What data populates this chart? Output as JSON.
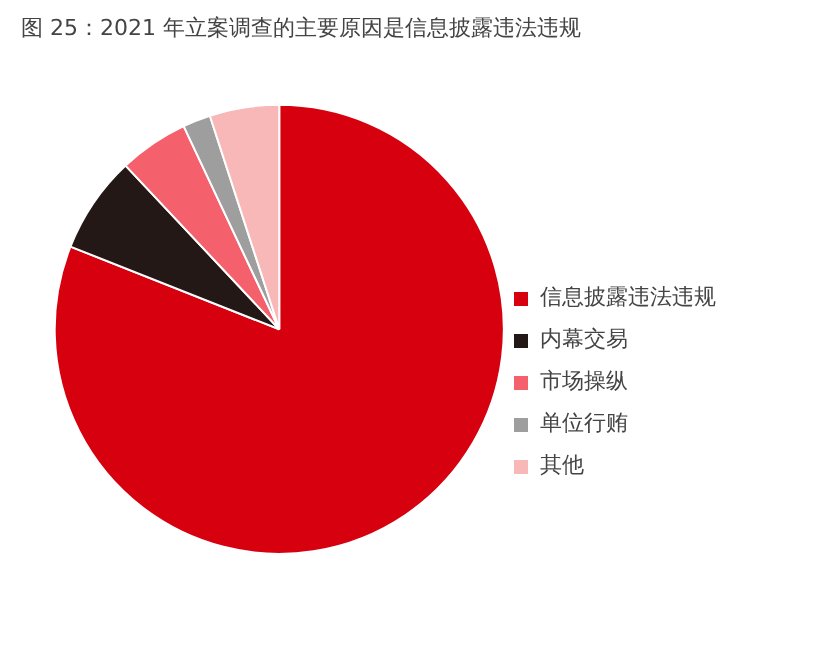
{
  "chart_data": {
    "type": "pie",
    "title": "图 25：2021 年立案调查的主要原因是信息披露违法违规",
    "categories": [
      "信息披露违法违规",
      "内幕交易",
      "市场操纵",
      "单位行贿",
      "其他"
    ],
    "values": [
      81,
      7,
      5,
      2,
      5
    ],
    "colors": [
      "#d7000f",
      "#231815",
      "#f4606c",
      "#9e9e9e",
      "#f9b8b8"
    ],
    "legend": "right"
  }
}
